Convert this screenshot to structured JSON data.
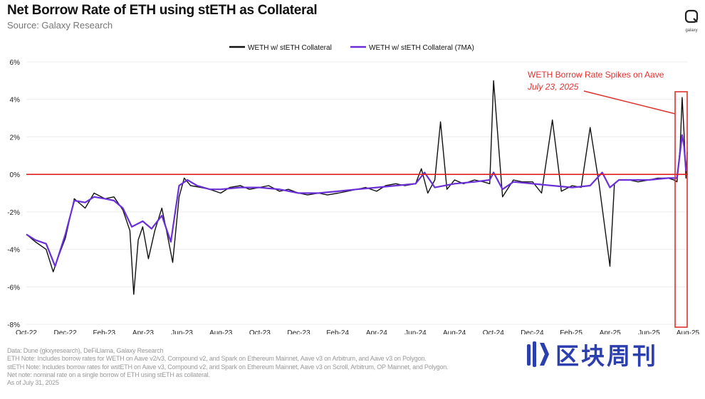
{
  "header": {
    "title": "Net Borrow Rate of ETH using stETH as Collateral",
    "subtitle": "Source: Galaxy Research",
    "logo_text": "galaxy"
  },
  "colors": {
    "series_daily": "#111111",
    "series_7ma": "#6a2fd6",
    "zero_line": "#e02020",
    "annotation": "#e03030",
    "watermark": "#2b3fae"
  },
  "chart_data": {
    "type": "line",
    "title": "Net Borrow Rate of ETH using stETH as Collateral",
    "ylabel": "",
    "xlabel": "",
    "ylim": [
      -8,
      6
    ],
    "y_ticks": [
      "6%",
      "4%",
      "2%",
      "0%",
      "-2%",
      "-4%",
      "-6%",
      "-8%"
    ],
    "x_ticks": [
      "Oct-22",
      "Dec-22",
      "Feb-23",
      "Apr-23",
      "Jun-23",
      "Aug-23",
      "Oct-23",
      "Dec-23",
      "Feb-24",
      "Apr-24",
      "Jun-24",
      "Aug-24",
      "Oct-24",
      "Dec-24",
      "Feb-25",
      "Apr-25",
      "Jun-25",
      "Aug-25"
    ],
    "legend": {
      "placement": "top-center",
      "entries": [
        "WETH w/ stETH Collateral",
        "WETH w/ stETH Collateral (7MA)"
      ]
    },
    "reference_line": {
      "y": 0
    },
    "series": [
      {
        "name": "WETH w/ stETH Collateral",
        "x": [
          "2022-10-01",
          "2022-10-15",
          "2022-11-01",
          "2022-11-12",
          "2022-11-20",
          "2022-12-01",
          "2022-12-15",
          "2023-01-01",
          "2023-01-15",
          "2023-02-01",
          "2023-02-15",
          "2023-03-01",
          "2023-03-12",
          "2023-03-18",
          "2023-03-25",
          "2023-04-01",
          "2023-04-10",
          "2023-04-20",
          "2023-05-01",
          "2023-05-10",
          "2023-05-18",
          "2023-05-28",
          "2023-06-05",
          "2023-06-15",
          "2023-07-01",
          "2023-07-15",
          "2023-08-01",
          "2023-08-15",
          "2023-09-01",
          "2023-09-15",
          "2023-10-01",
          "2023-10-15",
          "2023-11-01",
          "2023-11-15",
          "2023-12-01",
          "2023-12-15",
          "2024-01-01",
          "2024-01-15",
          "2024-02-01",
          "2024-02-15",
          "2024-03-01",
          "2024-03-15",
          "2024-04-01",
          "2024-04-15",
          "2024-05-01",
          "2024-05-15",
          "2024-06-01",
          "2024-06-10",
          "2024-06-20",
          "2024-07-01",
          "2024-07-10",
          "2024-07-20",
          "2024-08-01",
          "2024-08-15",
          "2024-09-01",
          "2024-09-15",
          "2024-09-25",
          "2024-10-01",
          "2024-10-15",
          "2024-11-01",
          "2024-11-15",
          "2024-12-01",
          "2024-12-15",
          "2025-01-01",
          "2025-01-15",
          "2025-02-01",
          "2025-02-15",
          "2025-03-01",
          "2025-03-15",
          "2025-04-01",
          "2025-04-08",
          "2025-04-15",
          "2025-05-01",
          "2025-05-15",
          "2025-06-01",
          "2025-06-15",
          "2025-07-01",
          "2025-07-10",
          "2025-07-15",
          "2025-07-20",
          "2025-07-23",
          "2025-07-26",
          "2025-07-29",
          "2025-07-31"
        ],
        "y": [
          -3.2,
          -3.6,
          -4.0,
          -5.2,
          -4.4,
          -3.4,
          -1.3,
          -1.8,
          -1.0,
          -1.3,
          -1.2,
          -1.9,
          -3.0,
          -6.4,
          -3.5,
          -2.8,
          -4.5,
          -3.0,
          -1.8,
          -3.3,
          -4.7,
          -1.2,
          -0.2,
          -0.6,
          -0.7,
          -0.8,
          -1.0,
          -0.7,
          -0.6,
          -0.8,
          -0.7,
          -0.6,
          -0.9,
          -0.8,
          -1.0,
          -1.1,
          -1.0,
          -1.1,
          -1.0,
          -0.9,
          -0.8,
          -0.7,
          -0.9,
          -0.6,
          -0.5,
          -0.6,
          -0.5,
          0.3,
          -1.0,
          -0.3,
          2.8,
          -0.8,
          -0.3,
          -0.5,
          -0.3,
          -0.4,
          -0.5,
          5.0,
          -1.2,
          -0.3,
          -0.4,
          -0.4,
          -1.0,
          2.9,
          -0.9,
          -0.6,
          -0.7,
          2.5,
          -0.5,
          -4.9,
          -0.5,
          -0.3,
          -0.3,
          -0.4,
          -0.3,
          -0.2,
          -0.2,
          -0.3,
          -0.4,
          1.5,
          4.1,
          2.2,
          -0.2,
          1.2
        ]
      },
      {
        "name": "WETH w/ stETH Collateral (7MA)",
        "x": [
          "2022-10-01",
          "2022-10-15",
          "2022-11-01",
          "2022-11-15",
          "2022-12-01",
          "2022-12-15",
          "2023-01-01",
          "2023-01-15",
          "2023-02-01",
          "2023-02-15",
          "2023-03-01",
          "2023-03-15",
          "2023-04-01",
          "2023-04-15",
          "2023-05-01",
          "2023-05-15",
          "2023-05-28",
          "2023-06-10",
          "2023-06-25",
          "2023-07-15",
          "2023-08-01",
          "2023-09-01",
          "2023-10-01",
          "2023-11-01",
          "2023-12-01",
          "2024-01-01",
          "2024-02-01",
          "2024-03-01",
          "2024-04-01",
          "2024-05-01",
          "2024-06-01",
          "2024-06-15",
          "2024-07-01",
          "2024-08-01",
          "2024-09-01",
          "2024-09-25",
          "2024-10-01",
          "2024-10-15",
          "2024-11-01",
          "2024-12-01",
          "2025-01-01",
          "2025-02-01",
          "2025-03-01",
          "2025-03-20",
          "2025-04-01",
          "2025-04-15",
          "2025-05-01",
          "2025-06-01",
          "2025-07-01",
          "2025-07-15",
          "2025-07-23",
          "2025-07-26",
          "2025-07-29",
          "2025-07-31"
        ],
        "y": [
          -3.2,
          -3.5,
          -3.7,
          -4.9,
          -3.2,
          -1.4,
          -1.5,
          -1.2,
          -1.3,
          -1.4,
          -1.8,
          -2.8,
          -2.5,
          -2.9,
          -2.2,
          -3.6,
          -0.6,
          -0.3,
          -0.6,
          -0.8,
          -0.8,
          -0.7,
          -0.7,
          -0.8,
          -1.0,
          -1.0,
          -0.9,
          -0.8,
          -0.7,
          -0.6,
          -0.5,
          0.1,
          -0.7,
          -0.5,
          -0.4,
          -0.3,
          0.1,
          -0.8,
          -0.4,
          -0.5,
          -0.6,
          -0.7,
          -0.6,
          0.1,
          -0.7,
          -0.3,
          -0.3,
          -0.3,
          -0.2,
          -0.2,
          2.1,
          1.5,
          0.2,
          0.3
        ]
      }
    ],
    "annotation": {
      "text_line1": "WETH Borrow Rate Spikes on Aave",
      "text_line2": "July 23, 2025"
    }
  },
  "notes": [
    "Data: Dune (gkxyresearch), DeFiLlama, Galaxy Research",
    "ETH Note: Includes borrow rates for WETH on Aave v2/v3, Compound v2, and Spark on Ethereum Mainnet, Aave v3 on Arbitrum, and Aave v3 on Polygon.",
    "stETH Note: Includes  borrow rates for wstETH on Aave v3, Compound v2, and  Spark on Ethereum Mainnet, Aave v3 on Scroll, Arbitrum, OP Mainnet, and Polygon.",
    "Net note: nominal rate on a single borrow of ETH using stETH as collateral.",
    "As of July 31, 2025"
  ],
  "watermark": {
    "text": "区块周刊"
  }
}
